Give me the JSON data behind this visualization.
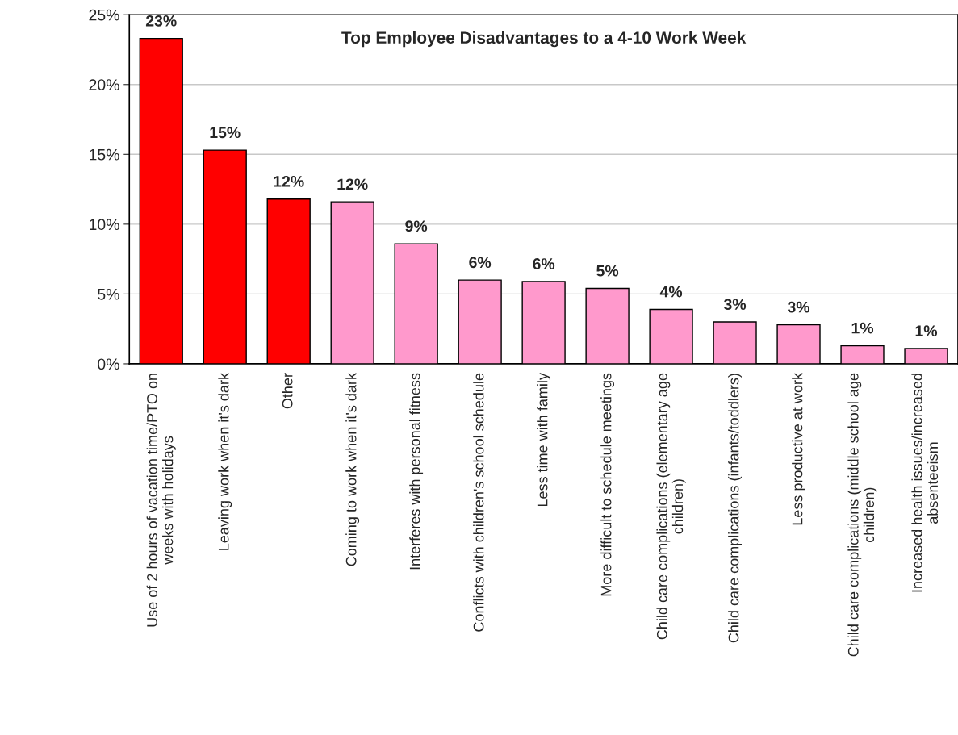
{
  "chart_data": {
    "type": "bar",
    "title": "Top Employee Disadvantages to a 4-10 Work Week",
    "categories": [
      "Use of 2 hours of vacation time/PTO on\nweeks with holidays",
      "Leaving work when it's dark",
      "Other",
      "Coming to work when it's dark",
      "Interferes with personal fitness",
      "Conflicts with children's school schedule",
      "Less time with family",
      "More difficult to schedule meetings",
      "Child care complications (elementary age\nchildren)",
      "Child care complications (infants/toddlers)",
      "Less productive at work",
      "Child care complications (middle school age\nchildren)",
      "Increased health issues/increased\nabsenteeism"
    ],
    "values": [
      23.3,
      15.3,
      11.8,
      11.6,
      8.6,
      6.0,
      5.9,
      5.4,
      3.9,
      3.0,
      2.8,
      1.3,
      1.1
    ],
    "colors": [
      "#ff0000",
      "#ff0000",
      "#ff0000",
      "#ff99cc",
      "#ff99cc",
      "#ff99cc",
      "#ff99cc",
      "#ff99cc",
      "#ff99cc",
      "#ff99cc",
      "#ff99cc",
      "#ff99cc",
      "#ff99cc"
    ],
    "value_labels": [
      "23%",
      "15%",
      "12%",
      "12%",
      "9%",
      "6%",
      "6%",
      "5%",
      "4%",
      "3%",
      "3%",
      "1%",
      "1%"
    ],
    "ylim": [
      0,
      25
    ],
    "yticks": [
      {
        "value": 0,
        "label": "0%"
      },
      {
        "value": 5,
        "label": "5%"
      },
      {
        "value": 10,
        "label": "10%"
      },
      {
        "value": 15,
        "label": "15%"
      },
      {
        "value": 20,
        "label": "20%"
      },
      {
        "value": 25,
        "label": "25%"
      }
    ],
    "grid": "y"
  }
}
